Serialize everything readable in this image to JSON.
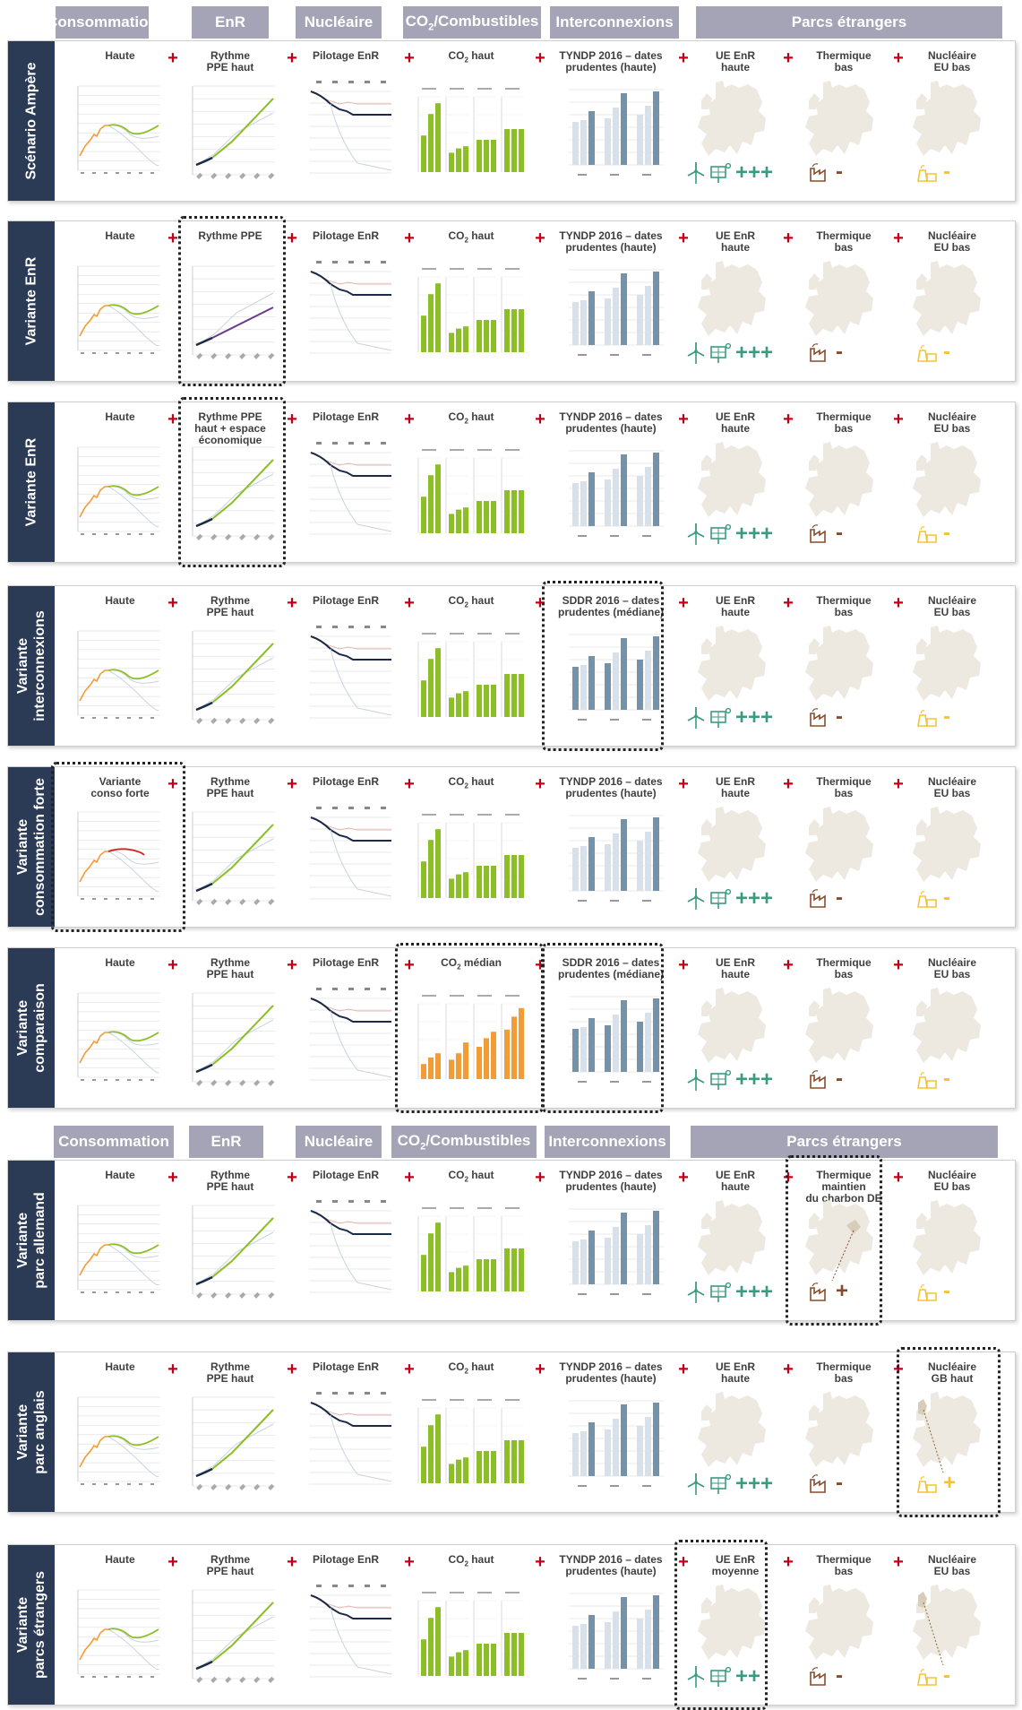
{
  "headers_top": [
    "Consommation",
    "EnR",
    "Nucléaire",
    "CO2/Combustibles",
    "Interconnexions",
    "Parcs étrangers"
  ],
  "headers_bottom": [
    "Consommation",
    "EnR",
    "Nucléaire",
    "CO2/Combustibles",
    "Interconnexions",
    "Parcs étrangers"
  ],
  "plus_symbol": "+",
  "colors": {
    "header": "#a4a4b6",
    "row_label": "#2b3a55",
    "plus": "#c00018",
    "green": "#8cbf26",
    "navy": "#1b2a48",
    "orange": "#f39c36",
    "grey_bar": "#d8e0ea",
    "blue_bar": "#7592ab",
    "teal": "#3a9a82",
    "brown": "#8a4a2c",
    "yellow": "#f5c332",
    "map": "#ede8e0"
  },
  "rows": [
    {
      "label": [
        "Scénario Ampère"
      ],
      "labels": [
        [
          "Haute"
        ],
        [
          "Rythme",
          "PPE haut"
        ],
        [
          "Pilotage EnR"
        ],
        [
          "CO2 haut"
        ],
        [
          "TYNDP 2016 – dates",
          "prudentes (haute)"
        ],
        [
          "UE EnR",
          "haute"
        ],
        [
          "Thermique",
          "bas"
        ],
        [
          "Nucléaire",
          "EU bas"
        ]
      ],
      "cons": "haute",
      "enr": "ppe_haut",
      "co2": "green",
      "inter": "tyndp",
      "ren": "+++",
      "therm": "-",
      "nuc": "-",
      "hl": []
    },
    {
      "label": [
        "Variante EnR"
      ],
      "labels": [
        [
          "Haute"
        ],
        [
          "Rythme PPE"
        ],
        [
          "Pilotage EnR"
        ],
        [
          "CO2 haut"
        ],
        [
          "TYNDP 2016 – dates",
          "prudentes (haute)"
        ],
        [
          "UE EnR",
          "haute"
        ],
        [
          "Thermique",
          "bas"
        ],
        [
          "Nucléaire",
          "EU bas"
        ]
      ],
      "cons": "haute",
      "enr": "ppe",
      "co2": "green",
      "inter": "tyndp",
      "ren": "+++",
      "therm": "-",
      "nuc": "-",
      "hl": [
        1
      ]
    },
    {
      "label": [
        "Variante EnR"
      ],
      "labels": [
        [
          "Haute"
        ],
        [
          "Rythme PPE",
          "haut + espace",
          "économique"
        ],
        [
          "Pilotage EnR"
        ],
        [
          "CO2 haut"
        ],
        [
          "TYNDP 2016 – dates",
          "prudentes (haute)"
        ],
        [
          "UE EnR",
          "haute"
        ],
        [
          "Thermique",
          "bas"
        ],
        [
          "Nucléaire",
          "EU bas"
        ]
      ],
      "cons": "haute",
      "enr": "ppe_haut",
      "co2": "green",
      "inter": "tyndp",
      "ren": "+++",
      "therm": "-",
      "nuc": "-",
      "hl": [
        1
      ]
    },
    {
      "label": [
        "Variante",
        "interconnexions"
      ],
      "labels": [
        [
          "Haute"
        ],
        [
          "Rythme",
          "PPE haut"
        ],
        [
          "Pilotage EnR"
        ],
        [
          "CO2 haut"
        ],
        [
          "SDDR 2016 – dates",
          "prudentes (médiane)"
        ],
        [
          "UE EnR",
          "haute"
        ],
        [
          "Thermique",
          "bas"
        ],
        [
          "Nucléaire",
          "EU bas"
        ]
      ],
      "cons": "haute",
      "enr": "ppe_haut",
      "co2": "green",
      "inter": "sddr",
      "ren": "+++",
      "therm": "-",
      "nuc": "-",
      "hl": [
        4
      ]
    },
    {
      "label": [
        "Variante",
        "consommation forte"
      ],
      "labels": [
        [
          "Variante",
          "conso forte"
        ],
        [
          "Rythme",
          "PPE haut"
        ],
        [
          "Pilotage EnR"
        ],
        [
          "CO2 haut"
        ],
        [
          "TYNDP 2016 – dates",
          "prudentes (haute)"
        ],
        [
          "UE EnR",
          "haute"
        ],
        [
          "Thermique",
          "bas"
        ],
        [
          "Nucléaire",
          "EU bas"
        ]
      ],
      "cons": "forte",
      "enr": "ppe_haut",
      "co2": "green",
      "inter": "tyndp",
      "ren": "+++",
      "therm": "-",
      "nuc": "-",
      "hl": [
        0
      ]
    },
    {
      "label": [
        "Variante",
        "comparaison"
      ],
      "labels": [
        [
          "Haute"
        ],
        [
          "Rythme",
          "PPE haut"
        ],
        [
          "Pilotage EnR"
        ],
        [
          "CO2 médian"
        ],
        [
          "SDDR 2016 – dates",
          "prudentes (médiane)"
        ],
        [
          "UE EnR",
          "haute"
        ],
        [
          "Thermique",
          "bas"
        ],
        [
          "Nucléaire",
          "EU bas"
        ]
      ],
      "cons": "haute",
      "enr": "ppe_haut",
      "co2": "orange",
      "inter": "sddr",
      "ren": "+++",
      "therm": "-",
      "nuc": "-",
      "hl": [
        3,
        4
      ]
    },
    {
      "label": [
        "Variante",
        "parc allemand"
      ],
      "labels": [
        [
          "Haute"
        ],
        [
          "Rythme",
          "PPE haut"
        ],
        [
          "Pilotage EnR"
        ],
        [
          "CO2 haut"
        ],
        [
          "TYNDP 2016 – dates",
          "prudentes (haute)"
        ],
        [
          "UE EnR",
          "haute"
        ],
        [
          "Thermique",
          "maintien",
          "du charbon DE"
        ],
        [
          "Nucléaire",
          "EU bas"
        ]
      ],
      "cons": "haute",
      "enr": "ppe_haut",
      "co2": "green",
      "inter": "tyndp",
      "ren": "+++",
      "therm": "+",
      "nuc": "-",
      "hl": [
        6
      ]
    },
    {
      "label": [
        "Variante",
        "parc anglais"
      ],
      "labels": [
        [
          "Haute"
        ],
        [
          "Rythme",
          "PPE haut"
        ],
        [
          "Pilotage EnR"
        ],
        [
          "CO2 haut"
        ],
        [
          "TYNDP 2016 – dates",
          "prudentes (haute)"
        ],
        [
          "UE EnR",
          "haute"
        ],
        [
          "Thermique",
          "bas"
        ],
        [
          "Nucléaire",
          "GB haut"
        ]
      ],
      "cons": "haute",
      "enr": "ppe_haut",
      "co2": "green",
      "inter": "tyndp",
      "ren": "+++",
      "therm": "-",
      "nuc": "+",
      "hl": [
        7
      ]
    },
    {
      "label": [
        "Variante",
        "parcs étrangers"
      ],
      "labels": [
        [
          "Haute"
        ],
        [
          "Rythme",
          "PPE haut"
        ],
        [
          "Pilotage EnR"
        ],
        [
          "CO2 haut"
        ],
        [
          "TYNDP 2016 – dates",
          "prudentes (haute)"
        ],
        [
          "UE EnR",
          "moyenne"
        ],
        [
          "Thermique",
          "bas"
        ],
        [
          "Nucléaire",
          "EU bas"
        ]
      ],
      "cons": "haute",
      "enr": "ppe_haut",
      "co2": "green",
      "inter": "tyndp",
      "ren": "++",
      "therm": "-",
      "nuc": "-",
      "hl": [
        5
      ]
    }
  ]
}
